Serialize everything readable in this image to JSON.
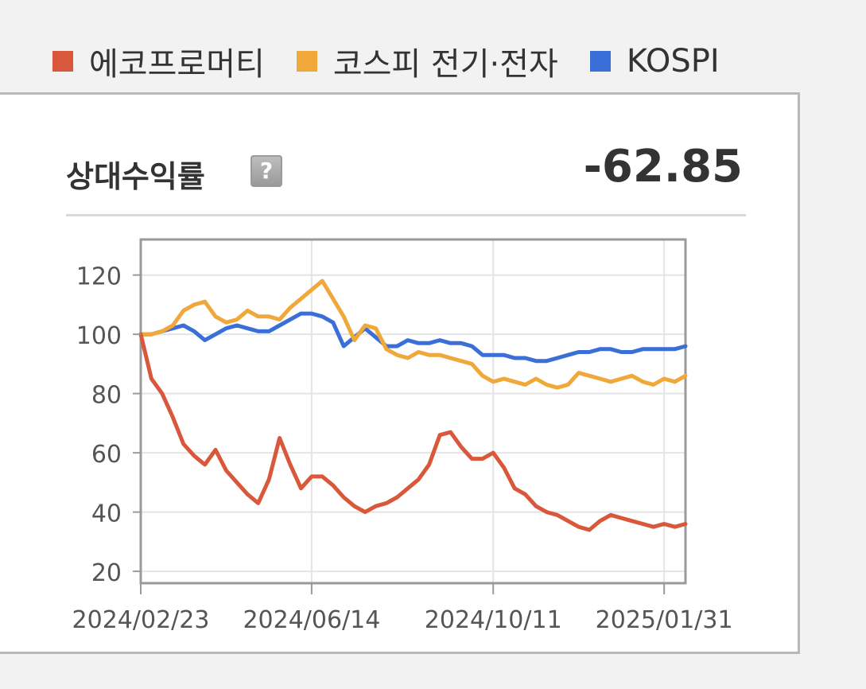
{
  "legend": [
    {
      "label": "에코프로머티",
      "color": "#d9573a"
    },
    {
      "label": "코스피 전기·전자",
      "color": "#f0a83a"
    },
    {
      "label": "KOSPI",
      "color": "#3a6fd8"
    }
  ],
  "card": {
    "title": "상대수익률",
    "help_icon_glyph": "?",
    "value": "-62.85"
  },
  "chart_data": {
    "type": "line",
    "title": "",
    "xlabel": "",
    "ylabel": "",
    "x_ticks": [
      "2024/02/23",
      "2024/06/14",
      "2024/10/11",
      "2025/01/31"
    ],
    "y_ticks": [
      20,
      40,
      60,
      80,
      100,
      120
    ],
    "ylim": [
      16,
      132
    ],
    "xlim": [
      "2024/02/23",
      "2025/02/14"
    ],
    "grid": true,
    "x": [
      "2024/02/23",
      "2024/03/01",
      "2024/03/08",
      "2024/03/15",
      "2024/03/22",
      "2024/03/29",
      "2024/04/05",
      "2024/04/12",
      "2024/04/19",
      "2024/04/26",
      "2024/05/03",
      "2024/05/10",
      "2024/05/17",
      "2024/05/24",
      "2024/05/31",
      "2024/06/07",
      "2024/06/14",
      "2024/06/21",
      "2024/06/28",
      "2024/07/05",
      "2024/07/12",
      "2024/07/19",
      "2024/07/26",
      "2024/08/02",
      "2024/08/09",
      "2024/08/16",
      "2024/08/23",
      "2024/08/30",
      "2024/09/06",
      "2024/09/13",
      "2024/09/20",
      "2024/09/27",
      "2024/10/04",
      "2024/10/11",
      "2024/10/18",
      "2024/10/25",
      "2024/11/01",
      "2024/11/08",
      "2024/11/15",
      "2024/11/22",
      "2024/11/29",
      "2024/12/06",
      "2024/12/13",
      "2024/12/20",
      "2024/12/27",
      "2025/01/03",
      "2025/01/10",
      "2025/01/17",
      "2025/01/24",
      "2025/01/31",
      "2025/02/07",
      "2025/02/14"
    ],
    "series": [
      {
        "name": "에코프로머티",
        "color": "#d9573a",
        "values": [
          100,
          85,
          80,
          72,
          63,
          59,
          56,
          61,
          54,
          50,
          46,
          43,
          51,
          65,
          56,
          48,
          52,
          52,
          49,
          45,
          42,
          40,
          42,
          43,
          45,
          48,
          51,
          56,
          66,
          67,
          62,
          58,
          58,
          60,
          55,
          48,
          46,
          42,
          40,
          39,
          37,
          35,
          34,
          37,
          39,
          38,
          37,
          36,
          35,
          36,
          35,
          36
        ]
      },
      {
        "name": "코스피 전기·전자",
        "color": "#f0a83a",
        "values": [
          100,
          100,
          101,
          103,
          108,
          110,
          111,
          106,
          104,
          105,
          108,
          106,
          106,
          105,
          109,
          112,
          115,
          118,
          112,
          106,
          98,
          103,
          102,
          95,
          93,
          92,
          94,
          93,
          93,
          92,
          91,
          90,
          86,
          84,
          85,
          84,
          83,
          85,
          83,
          82,
          83,
          87,
          86,
          85,
          84,
          85,
          86,
          84,
          83,
          85,
          84,
          86
        ]
      },
      {
        "name": "KOSPI",
        "color": "#3a6fd8",
        "values": [
          100,
          100,
          101,
          102,
          103,
          101,
          98,
          100,
          102,
          103,
          102,
          101,
          101,
          103,
          105,
          107,
          107,
          106,
          104,
          96,
          99,
          102,
          99,
          96,
          96,
          98,
          97,
          97,
          98,
          97,
          97,
          96,
          93,
          93,
          93,
          92,
          92,
          91,
          91,
          92,
          93,
          94,
          94,
          95,
          95,
          94,
          94,
          95,
          95,
          95,
          95,
          96
        ]
      }
    ]
  }
}
